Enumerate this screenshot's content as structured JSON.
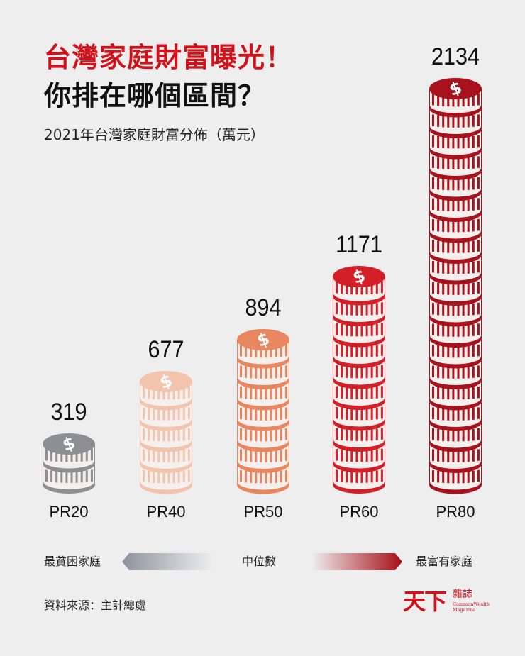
{
  "header": {
    "title_line1": "台灣家庭財富曝光！",
    "title_line2": "你排在哪個區間？",
    "subtitle": "2021年台灣家庭財富分佈（萬元）"
  },
  "colors": {
    "background": "#eeeeee",
    "title_red": "#d2121b",
    "pr20": "#8e8f91",
    "pr40": "#f3c4ad",
    "pr50": "#e8875f",
    "pr60": "#d31f28",
    "pr80": "#a8121c",
    "coin_light": "#f5f0ee"
  },
  "bars": [
    {
      "label": "PR20",
      "value": "319",
      "coins": 2,
      "color": "#8e8f91"
    },
    {
      "label": "PR40",
      "value": "677",
      "coins": 5,
      "color": "#f3c4ad"
    },
    {
      "label": "PR50",
      "value": "894",
      "coins": 7,
      "color": "#e8875f"
    },
    {
      "label": "PR60",
      "value": "1171",
      "coins": 10,
      "color": "#d31f28"
    },
    {
      "label": "PR80",
      "value": "2134",
      "coins": 19,
      "color": "#a8121c"
    }
  ],
  "legend": {
    "left": "最貧困家庭",
    "middle": "中位數",
    "right": "最富有家庭"
  },
  "footer": {
    "source": "資料來源：主計總處",
    "logo_main": "天下",
    "logo_sub": "雜誌",
    "logo_en1": "CommonWealth",
    "logo_en2": "Magazine"
  },
  "chart_data": {
    "type": "bar",
    "title": "台灣家庭財富曝光！你排在哪個區間？",
    "subtitle": "2021年台灣家庭財富分佈（萬元）",
    "categories": [
      "PR20",
      "PR40",
      "PR50",
      "PR60",
      "PR80"
    ],
    "values": [
      319,
      677,
      894,
      1171,
      2134
    ],
    "xlabel": "",
    "ylabel": "萬元",
    "grid": false,
    "legend": "none",
    "annotations": [
      "最貧困家庭",
      "中位數",
      "最富有家庭"
    ],
    "source": "資料來源：主計總處"
  }
}
